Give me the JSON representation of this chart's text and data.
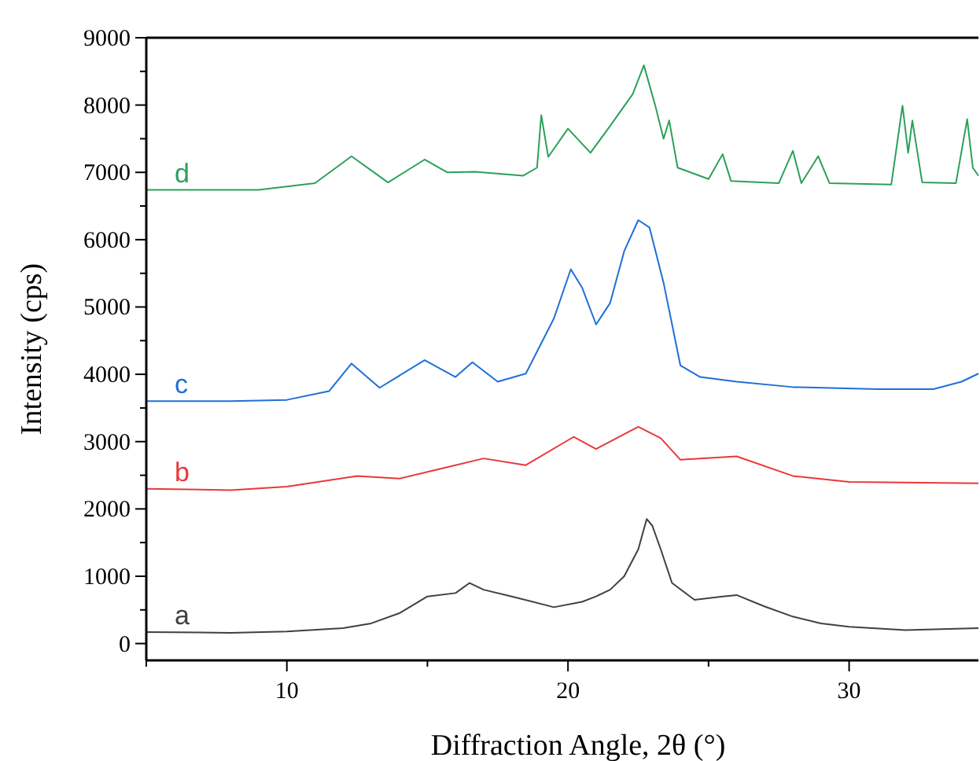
{
  "chart_data": {
    "type": "line",
    "xlabel": "Diffraction Angle, 2θ (°)",
    "ylabel": "Intensity (cps)",
    "xlim": [
      5,
      34.6
    ],
    "ylim": [
      -250,
      9000
    ],
    "xticks": [
      {
        "value": 5,
        "label": null
      },
      10,
      {
        "value": 15,
        "label": null
      },
      20,
      {
        "value": 25,
        "label": null
      },
      30
    ],
    "yticks": [
      0,
      {
        "value": 500,
        "label": null
      },
      1000,
      {
        "value": 1500,
        "label": null
      },
      2000,
      {
        "value": 2500,
        "label": null
      },
      3000,
      {
        "value": 3500,
        "label": null
      },
      4000,
      {
        "value": 4500,
        "label": null
      },
      5000,
      {
        "value": 5500,
        "label": null
      },
      6000,
      {
        "value": 6500,
        "label": null
      },
      7000,
      {
        "value": 7500,
        "label": null
      },
      8000,
      {
        "value": 8500,
        "label": null
      },
      9000
    ],
    "marker": "none",
    "line_style": "solid",
    "series": [
      {
        "name": "a",
        "color": "#404040",
        "x": [
          5,
          8,
          10,
          12,
          13,
          14,
          15,
          16,
          16.5,
          17,
          18,
          19.5,
          20.5,
          21,
          21.5,
          22,
          22.5,
          22.8,
          23,
          23.3,
          23.7,
          24.5,
          25.5,
          26,
          27,
          28,
          29,
          30,
          32,
          34.6
        ],
        "values": [
          170,
          160,
          180,
          230,
          300,
          450,
          700,
          750,
          900,
          800,
          700,
          540,
          620,
          700,
          800,
          1000,
          1400,
          1850,
          1750,
          1400,
          900,
          650,
          700,
          720,
          550,
          400,
          300,
          250,
          200,
          230
        ]
      },
      {
        "name": "b",
        "color": "#e8383b",
        "x": [
          5,
          8,
          10,
          12.5,
          14,
          15.5,
          17,
          18.5,
          20.2,
          21,
          22.5,
          23.3,
          24,
          26,
          28,
          30,
          34.6
        ],
        "values": [
          2300,
          2280,
          2330,
          2490,
          2450,
          2600,
          2750,
          2650,
          3070,
          2890,
          3220,
          3050,
          2730,
          2780,
          2490,
          2400,
          2380
        ]
      },
      {
        "name": "c",
        "color": "#1f6fd8",
        "x": [
          5,
          8,
          10,
          11.5,
          12.3,
          13.3,
          14.9,
          16,
          16.6,
          17.5,
          18.5,
          19.5,
          20.1,
          20.5,
          21,
          21.5,
          22,
          22.5,
          22.9,
          23.4,
          24,
          24.7,
          26,
          28,
          31,
          33,
          34,
          34.6
        ],
        "values": [
          3600,
          3600,
          3620,
          3750,
          4160,
          3800,
          4210,
          3960,
          4180,
          3890,
          4010,
          4830,
          5560,
          5290,
          4740,
          5060,
          5830,
          6290,
          6180,
          5360,
          4130,
          3960,
          3890,
          3810,
          3780,
          3780,
          3890,
          4010
        ]
      },
      {
        "name": "d",
        "color": "#2ca05a",
        "x": [
          5,
          9,
          11,
          12.3,
          13.6,
          14.9,
          15.7,
          16.7,
          18.4,
          18.9,
          19.05,
          19.3,
          20,
          20.8,
          21.5,
          22.3,
          22.7,
          23.1,
          23.4,
          23.6,
          23.9,
          25,
          25.5,
          25.8,
          27.5,
          28,
          28.3,
          28.9,
          29.3,
          31.5,
          31.9,
          32.1,
          32.25,
          32.6,
          33.8,
          34.2,
          34.4,
          34.6
        ],
        "values": [
          6740,
          6740,
          6840,
          7240,
          6850,
          7190,
          7000,
          7010,
          6950,
          7070,
          7850,
          7230,
          7650,
          7290,
          7690,
          8160,
          8590,
          8000,
          7500,
          7770,
          7070,
          6900,
          7270,
          6870,
          6840,
          7320,
          6840,
          7240,
          6840,
          6820,
          7990,
          7290,
          7770,
          6850,
          6840,
          7790,
          7070,
          6950
        ]
      }
    ]
  }
}
